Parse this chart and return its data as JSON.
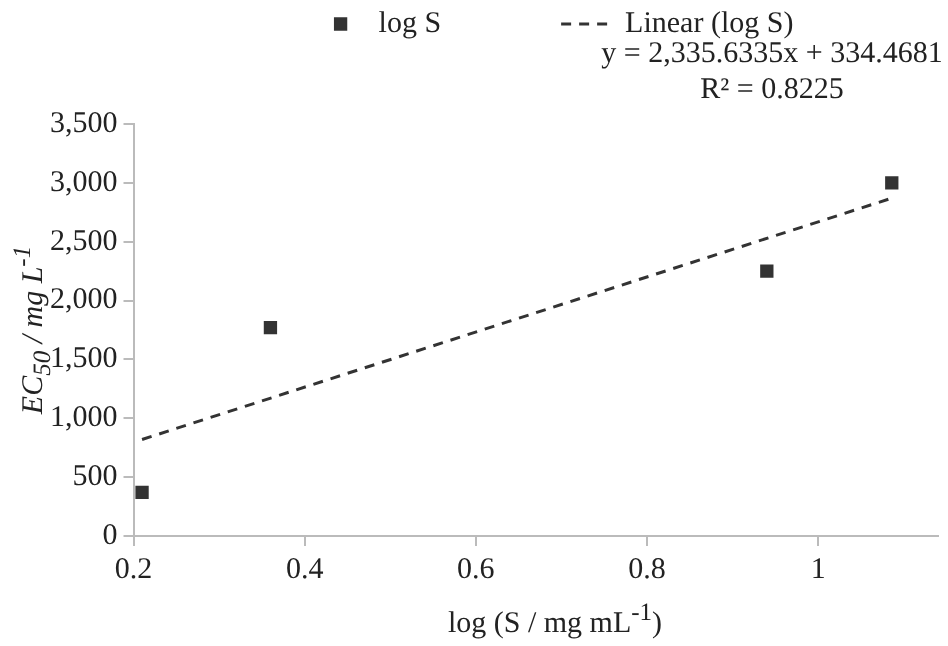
{
  "chart_data": {
    "type": "scatter",
    "xlabel": "log (S  / mg mL$^{-1}$)",
    "ylabel": "EC$_{50}$ / mg L$^{-1}$",
    "xlim": [
      0.2,
      1.14
    ],
    "xticks": [
      0.2,
      0.4,
      0.6,
      0.8,
      1
    ],
    "ylim": [
      0,
      3500
    ],
    "yticks": [
      {
        "value": 0,
        "label": "0"
      },
      {
        "value": 500,
        "label": "500"
      },
      {
        "value": 1000,
        "label": "1,000"
      },
      {
        "value": 1500,
        "label": "1,500"
      },
      {
        "value": 2000,
        "label": "2,000"
      },
      {
        "value": 2500,
        "label": "2,500"
      },
      {
        "value": 3000,
        "label": "3,000"
      },
      {
        "value": 3500,
        "label": "3,500"
      }
    ],
    "series": [
      {
        "name": "log S",
        "type": "scatter",
        "color": "#333333",
        "marker": "square",
        "x": [
          0.21,
          0.36,
          0.94,
          1.086
        ],
        "values": [
          370,
          1770,
          2250,
          3000
        ]
      },
      {
        "name": "Linear (log S)",
        "type": "line",
        "color": "#333333",
        "marker": "none",
        "line_style": "dashed",
        "x": [
          0.21,
          1.086
        ],
        "values": [
          820,
          2870
        ]
      }
    ],
    "annotations": [
      "y = 2,335.6335x + 334.4681",
      "R² = 0.8225"
    ],
    "grid": false,
    "legend": "top"
  }
}
